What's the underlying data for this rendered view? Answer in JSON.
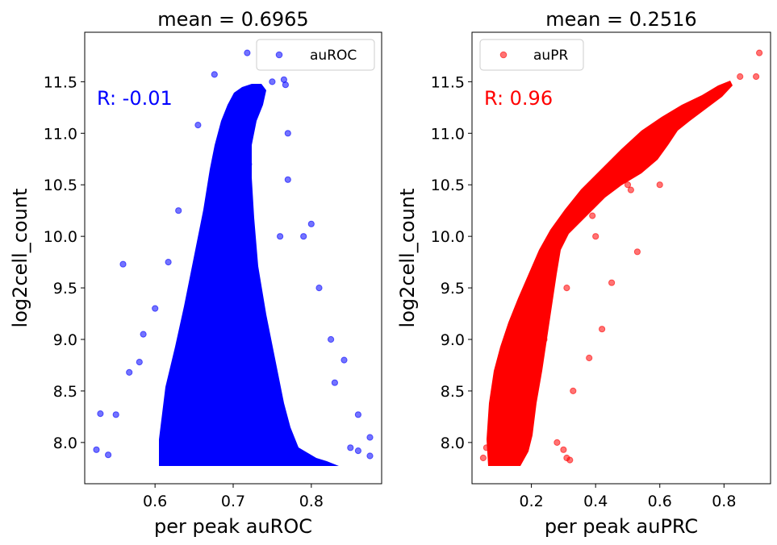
{
  "chart_data": [
    {
      "type": "scatter",
      "title": "mean = 0.6965",
      "xlabel": "per peak auROC",
      "ylabel": "log2cell_count",
      "xlim": [
        0.51,
        0.89
      ],
      "ylim": [
        7.6,
        11.98
      ],
      "xticks": [
        "0.6",
        "0.7",
        "0.8"
      ],
      "yticks": [
        "8.0",
        "8.5",
        "9.0",
        "9.5",
        "10.0",
        "10.5",
        "11.0",
        "11.5"
      ],
      "legend": {
        "label": "auROC",
        "position": "upper right"
      },
      "annotation": "R: -0.01",
      "color": "#0000ff",
      "series": [
        {
          "name": "auROC",
          "points": [
            [
              0.7,
              8.0
            ],
            [
              0.66,
              8.1
            ],
            [
              0.74,
              8.3
            ],
            [
              0.62,
              8.0
            ],
            [
              0.68,
              8.6
            ],
            [
              0.72,
              9.0
            ],
            [
              0.65,
              9.2
            ],
            [
              0.73,
              9.5
            ],
            [
              0.69,
              9.8
            ],
            [
              0.71,
              10.1
            ],
            [
              0.67,
              10.4
            ],
            [
              0.72,
              10.7
            ],
            [
              0.7,
              11.0
            ],
            [
              0.73,
              11.3
            ],
            [
              0.75,
              11.5
            ],
            [
              0.559,
              9.73
            ],
            [
              0.53,
              8.28
            ],
            [
              0.55,
              8.27
            ],
            [
              0.525,
              7.93
            ],
            [
              0.54,
              7.88
            ],
            [
              0.567,
              8.68
            ],
            [
              0.58,
              8.78
            ],
            [
              0.585,
              9.05
            ],
            [
              0.6,
              9.3
            ],
            [
              0.617,
              9.75
            ],
            [
              0.63,
              10.25
            ],
            [
              0.655,
              11.08
            ],
            [
              0.676,
              11.57
            ],
            [
              0.718,
              11.78
            ],
            [
              0.765,
              11.52
            ],
            [
              0.767,
              11.47
            ],
            [
              0.77,
              11.0
            ],
            [
              0.77,
              10.55
            ],
            [
              0.76,
              10.0
            ],
            [
              0.79,
              10.0
            ],
            [
              0.8,
              10.12
            ],
            [
              0.81,
              9.5
            ],
            [
              0.825,
              9.0
            ],
            [
              0.83,
              8.58
            ],
            [
              0.86,
              8.27
            ],
            [
              0.875,
              8.05
            ],
            [
              0.86,
              7.92
            ],
            [
              0.875,
              7.87
            ],
            [
              0.85,
              7.95
            ],
            [
              0.842,
              8.8
            ]
          ]
        }
      ]
    },
    {
      "type": "scatter",
      "title": "mean = 0.2516",
      "xlabel": "per peak auPRC",
      "ylabel": "log2cell_count",
      "xlim": [
        0.015,
        0.945
      ],
      "ylim": [
        7.6,
        11.98
      ],
      "xticks": [
        "0.2",
        "0.4",
        "0.6",
        "0.8"
      ],
      "yticks": [
        "8.0",
        "8.5",
        "9.0",
        "9.5",
        "10.0",
        "10.5",
        "11.0",
        "11.5"
      ],
      "legend": {
        "label": "auPR",
        "position": "upper left"
      },
      "annotation": "R: 0.96",
      "color": "#ff0000",
      "series": [
        {
          "name": "auPR",
          "points": [
            [
              0.12,
              8.0
            ],
            [
              0.18,
              8.5
            ],
            [
              0.24,
              9.0
            ],
            [
              0.31,
              9.5
            ],
            [
              0.4,
              10.0
            ],
            [
              0.5,
              10.5
            ],
            [
              0.62,
              11.0
            ],
            [
              0.75,
              11.35
            ],
            [
              0.85,
              11.55
            ],
            [
              0.91,
              11.78
            ],
            [
              0.9,
              11.55
            ],
            [
              0.3,
              7.93
            ],
            [
              0.32,
              7.83
            ],
            [
              0.31,
              7.85
            ],
            [
              0.28,
              8.0
            ],
            [
              0.33,
              8.5
            ],
            [
              0.38,
              8.82
            ],
            [
              0.42,
              9.1
            ],
            [
              0.45,
              9.55
            ],
            [
              0.53,
              9.85
            ],
            [
              0.6,
              10.5
            ],
            [
              0.39,
              10.2
            ],
            [
              0.42,
              10.4
            ],
            [
              0.45,
              10.5
            ],
            [
              0.51,
              10.45
            ],
            [
              0.06,
              7.95
            ],
            [
              0.05,
              7.85
            ],
            [
              0.08,
              8.28
            ],
            [
              0.1,
              8.6
            ],
            [
              0.14,
              9.0
            ]
          ]
        }
      ]
    }
  ]
}
